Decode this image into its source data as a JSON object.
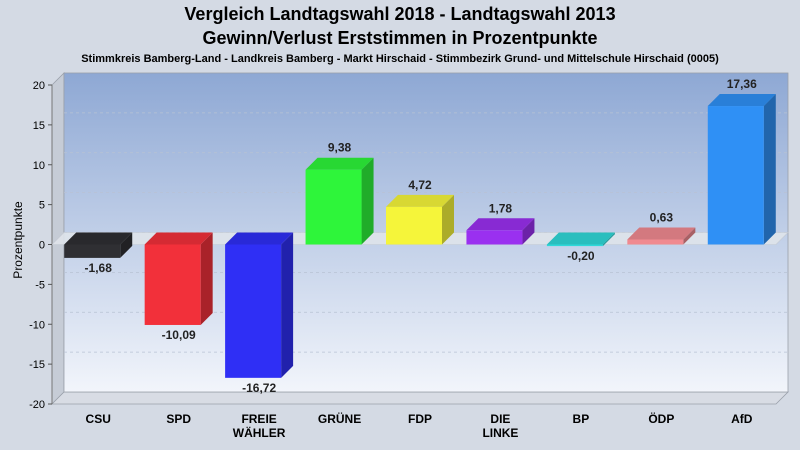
{
  "chart_data": {
    "type": "bar",
    "title": "Vergleich Landtagswahl 2018 - Landtagswahl 2013",
    "subtitle": "Gewinn/Verlust Erststimmen in Prozentpunkte",
    "caption": "Stimmkreis Bamberg-Land - Landkreis Bamberg - Markt Hirschaid - Stimmbezirk Grund- und Mittelschule Hirschaid (0005)",
    "ylabel": "Prozentpunkte",
    "xlabel": "",
    "ylim": [
      -20,
      20
    ],
    "yticks": [
      20,
      15,
      10,
      5,
      0,
      -5,
      -10,
      -15,
      -20
    ],
    "grid": true,
    "categories": [
      "CSU",
      "SPD",
      "FREIE WÄHLER",
      "GRÜNE",
      "FDP",
      "DIE LINKE",
      "BP",
      "ÖDP",
      "AfD"
    ],
    "values": [
      -1.68,
      -10.09,
      -16.72,
      9.38,
      4.72,
      1.78,
      -0.2,
      0.63,
      17.36
    ],
    "value_labels": [
      "-1,68",
      "-10,09",
      "-16,72",
      "9,38",
      "4,72",
      "1,78",
      "-0,20",
      "0,63",
      "17,36"
    ],
    "colors": [
      "#2f2f33",
      "#f2303a",
      "#2f2ff5",
      "#2ef53a",
      "#f5f53a",
      "#9a30f0",
      "#30d8d8",
      "#f08a90",
      "#2f90f5"
    ]
  }
}
